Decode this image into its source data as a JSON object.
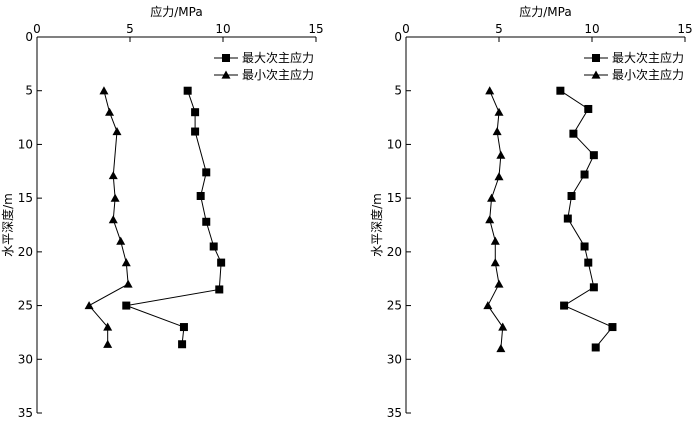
{
  "chart_data": [
    {
      "type": "line",
      "xlabel": "应力/MPa",
      "ylabel": "水平深度/m",
      "xlim": [
        0,
        15
      ],
      "ylim": [
        0,
        35
      ],
      "x_ticks": [
        "0",
        "5",
        "10",
        "15"
      ],
      "y_ticks": [
        "0",
        "5",
        "10",
        "15",
        "20",
        "25",
        "30",
        "35"
      ],
      "y_inverted": true,
      "x_axis_position": "top",
      "grid": false,
      "legend_position": "top-right",
      "series": [
        {
          "name": "最大次主应力",
          "marker": "square",
          "points": [
            {
              "x": 8.1,
              "y": 5.0
            },
            {
              "x": 8.5,
              "y": 7.0
            },
            {
              "x": 8.5,
              "y": 8.8
            },
            {
              "x": 9.1,
              "y": 12.6
            },
            {
              "x": 8.8,
              "y": 14.8
            },
            {
              "x": 9.1,
              "y": 17.2
            },
            {
              "x": 9.5,
              "y": 19.5
            },
            {
              "x": 9.9,
              "y": 21.0
            },
            {
              "x": 9.8,
              "y": 23.5
            },
            {
              "x": 4.8,
              "y": 25.0
            },
            {
              "x": 7.9,
              "y": 27.0
            },
            {
              "x": 7.8,
              "y": 28.6
            }
          ]
        },
        {
          "name": "最小次主应力",
          "marker": "triangle",
          "points": [
            {
              "x": 3.6,
              "y": 5.0
            },
            {
              "x": 3.9,
              "y": 7.0
            },
            {
              "x": 4.3,
              "y": 8.8
            },
            {
              "x": 4.1,
              "y": 12.9
            },
            {
              "x": 4.2,
              "y": 15.0
            },
            {
              "x": 4.1,
              "y": 17.0
            },
            {
              "x": 4.5,
              "y": 19.0
            },
            {
              "x": 4.8,
              "y": 21.0
            },
            {
              "x": 4.9,
              "y": 23.0
            },
            {
              "x": 2.8,
              "y": 25.0
            },
            {
              "x": 3.8,
              "y": 27.0
            },
            {
              "x": 3.8,
              "y": 28.6
            }
          ]
        }
      ]
    },
    {
      "type": "line",
      "xlabel": "应力/MPa",
      "ylabel": "水平深度/m",
      "xlim": [
        0,
        15
      ],
      "ylim": [
        0,
        35
      ],
      "x_ticks": [
        "0",
        "5",
        "10",
        "15"
      ],
      "y_ticks": [
        "0",
        "5",
        "10",
        "15",
        "20",
        "25",
        "30",
        "35"
      ],
      "y_inverted": true,
      "x_axis_position": "top",
      "grid": false,
      "legend_position": "top-right",
      "series": [
        {
          "name": "最大次主应力",
          "marker": "square",
          "points": [
            {
              "x": 8.3,
              "y": 5.0
            },
            {
              "x": 9.8,
              "y": 6.7
            },
            {
              "x": 9.0,
              "y": 9.0
            },
            {
              "x": 10.1,
              "y": 11.0
            },
            {
              "x": 9.6,
              "y": 12.8
            },
            {
              "x": 8.9,
              "y": 14.8
            },
            {
              "x": 8.7,
              "y": 16.9
            },
            {
              "x": 9.6,
              "y": 19.5
            },
            {
              "x": 9.8,
              "y": 21.0
            },
            {
              "x": 10.1,
              "y": 23.3
            },
            {
              "x": 8.5,
              "y": 25.0
            },
            {
              "x": 11.1,
              "y": 27.0
            },
            {
              "x": 10.2,
              "y": 28.9
            }
          ]
        },
        {
          "name": "最小次主应力",
          "marker": "triangle",
          "points": [
            {
              "x": 4.5,
              "y": 5.0
            },
            {
              "x": 5.0,
              "y": 7.0
            },
            {
              "x": 4.9,
              "y": 8.8
            },
            {
              "x": 5.1,
              "y": 11.0
            },
            {
              "x": 5.0,
              "y": 13.0
            },
            {
              "x": 4.6,
              "y": 15.0
            },
            {
              "x": 4.5,
              "y": 17.0
            },
            {
              "x": 4.8,
              "y": 19.0
            },
            {
              "x": 4.8,
              "y": 21.0
            },
            {
              "x": 5.0,
              "y": 23.0
            },
            {
              "x": 4.4,
              "y": 25.0
            },
            {
              "x": 5.2,
              "y": 27.0
            },
            {
              "x": 5.1,
              "y": 29.0
            }
          ]
        }
      ]
    }
  ]
}
